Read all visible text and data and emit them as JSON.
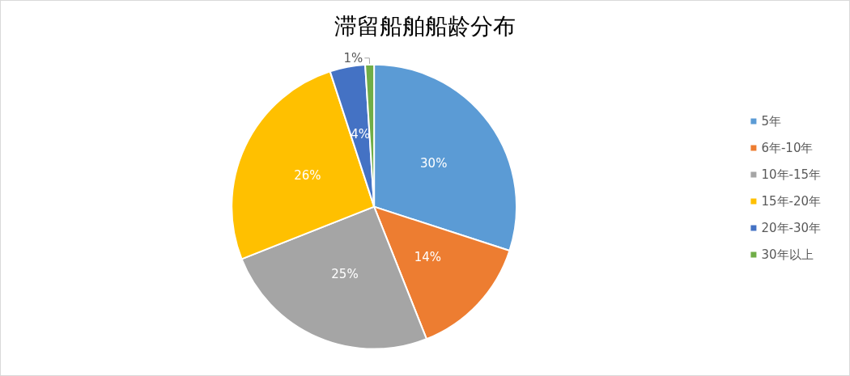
{
  "chart_data": {
    "type": "pie",
    "title": "滞留船舶船龄分布",
    "categories": [
      "5年",
      "6年-10年",
      "10年-15年",
      "15年-20年",
      "20年-30年",
      "30年以上"
    ],
    "values": [
      30,
      14,
      25,
      26,
      4,
      1
    ],
    "value_labels": [
      "30%",
      "14%",
      "25%",
      "26%",
      "4%",
      "1%"
    ],
    "colors": [
      "#5b9bd5",
      "#ed7d31",
      "#a5a5a5",
      "#ffc000",
      "#4472c4",
      "#70ad47"
    ],
    "legend": "right"
  }
}
